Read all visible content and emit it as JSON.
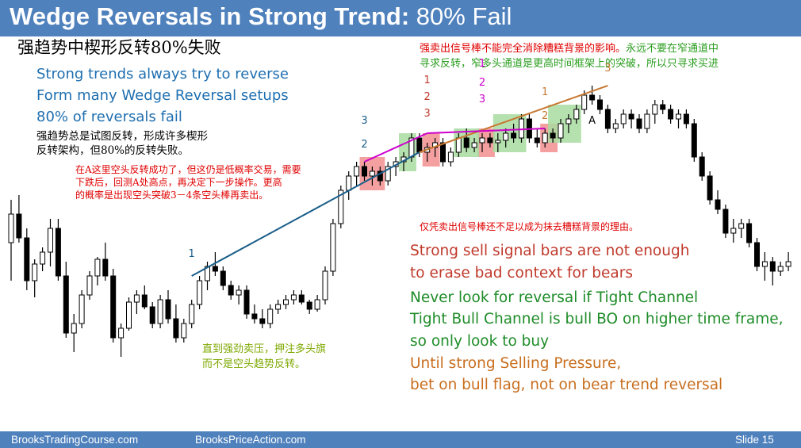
{
  "slide": {
    "title_bold": "Wedge Reversals in Strong Trend:",
    "title_plain": " 80% Fail",
    "title_zh": "强趋势中楔形反转80%失败",
    "blue_lines": [
      "Strong trends always try to reverse",
      "Form many Wedge Reversal setups",
      "80% of reversals fail"
    ],
    "note_black_zh": [
      "强趋势总是试图反转，形成许多楔形",
      "反转架构，但80%的反转失败。"
    ],
    "note_red_zh": [
      "在A这里空头反转成功了，但这仍是低概率交易，需要",
      "下跌后，回测A处高点，再决定下一步操作。更高",
      "的概率是出现空头突破3－4条空头棒再卖出。"
    ],
    "note_top_right_red_zh": "强卖出信号棒不能完全消除糟糕背景的影响。",
    "note_top_right_green_zh": "永远不要在窄通道中",
    "note_top_right_green_zh_2": "寻求反转，窄多头通道是更高时间框架上的突破，所以只寻求买进",
    "note_mid_red_zh": "仅凭卖出信号棒还不足以成为抹去糟糕背景的理由。",
    "note_olive_zh": [
      "直到强劲卖压，押注多头旗",
      "而不是空头趋势反转。"
    ],
    "en_lines": [
      {
        "text": "Strong sell signal bars are not enough",
        "color": "#c0392b"
      },
      {
        "text": "to erase bad context for bears",
        "color": "#c0392b"
      },
      {
        "text": "Never look for reversal if Tight Channel",
        "color": "#1e8c28"
      },
      {
        "text": "Tight Bull Channel is bull BO on higher time frame,",
        "color": "#1e8c28"
      },
      {
        "text": "so only look to buy",
        "color": "#1e8c28"
      },
      {
        "text": "Until strong Selling Pressure,",
        "color": "#c86e1e"
      },
      {
        "text": "bet on bull flag, not on bear trend reversal",
        "color": "#c86e1e"
      }
    ],
    "footer_left": "BrooksTradingCourse.com",
    "footer_mid": "BrooksPriceAction.com",
    "footer_right": "Slide  15"
  },
  "chart_data": {
    "type": "candlestick",
    "title": "",
    "xlabel": "",
    "ylabel": "",
    "grid": false,
    "colors": {
      "bull": "#ffffff",
      "bear": "#000000",
      "wick": "#000000",
      "wedge1": "#1a5e8a",
      "wedge2": "#c87832",
      "wedge3": "#cc00cc",
      "signal_red": "#f4a0a0",
      "green_box": "#a8dca0"
    },
    "bars": [
      [
        28,
        46,
        12,
        40
      ],
      [
        40,
        48,
        28,
        30
      ],
      [
        30,
        34,
        8,
        12
      ],
      [
        12,
        21,
        5,
        19
      ],
      [
        19,
        26,
        16,
        24
      ],
      [
        24,
        38,
        18,
        34
      ],
      [
        34,
        38,
        12,
        14
      ],
      [
        14,
        20,
        -12,
        -10
      ],
      [
        -10,
        -2,
        -18,
        -6
      ],
      [
        -6,
        8,
        -8,
        6
      ],
      [
        6,
        16,
        4,
        14
      ],
      [
        14,
        22,
        10,
        21
      ],
      [
        21,
        28,
        12,
        14
      ],
      [
        14,
        17,
        -14,
        -12
      ],
      [
        -12,
        -6,
        -20,
        -8
      ],
      [
        -8,
        5,
        -9,
        3
      ],
      [
        3,
        8,
        -2,
        6
      ],
      [
        6,
        10,
        0,
        1
      ],
      [
        1,
        3,
        -8,
        -6
      ],
      [
        -6,
        6,
        -8,
        4
      ],
      [
        4,
        8,
        -6,
        -4
      ],
      [
        -4,
        2,
        -14,
        -12
      ],
      [
        -12,
        -4,
        -14,
        -6
      ],
      [
        -6,
        4,
        -8,
        2
      ],
      [
        2,
        14,
        0,
        12
      ],
      [
        12,
        20,
        8,
        18
      ],
      [
        18,
        24,
        14,
        16
      ],
      [
        16,
        18,
        8,
        10
      ],
      [
        10,
        12,
        4,
        6
      ],
      [
        6,
        10,
        2,
        8
      ],
      [
        8,
        10,
        -4,
        -2
      ],
      [
        -2,
        2,
        -6,
        -4
      ],
      [
        -4,
        0,
        -8,
        -6
      ],
      [
        -6,
        2,
        -8,
        0
      ],
      [
        0,
        4,
        -2,
        2
      ],
      [
        2,
        6,
        0,
        4
      ],
      [
        4,
        8,
        2,
        6
      ],
      [
        6,
        8,
        2,
        3
      ],
      [
        3,
        4,
        -2,
        0
      ],
      [
        0,
        6,
        -1,
        4
      ],
      [
        4,
        18,
        2,
        16
      ],
      [
        16,
        38,
        14,
        36
      ],
      [
        36,
        52,
        34,
        50
      ],
      [
        50,
        58,
        46,
        56
      ],
      [
        56,
        62,
        52,
        60
      ],
      [
        60,
        62,
        54,
        56
      ],
      [
        56,
        60,
        52,
        58
      ],
      [
        58,
        60,
        52,
        54
      ],
      [
        54,
        62,
        52,
        60
      ],
      [
        60,
        64,
        56,
        62
      ],
      [
        62,
        66,
        58,
        64
      ],
      [
        64,
        74,
        62,
        72
      ],
      [
        72,
        74,
        64,
        66
      ],
      [
        66,
        70,
        62,
        68
      ],
      [
        68,
        72,
        64,
        70
      ],
      [
        70,
        72,
        60,
        62
      ],
      [
        62,
        68,
        60,
        66
      ],
      [
        66,
        74,
        64,
        72
      ],
      [
        72,
        76,
        66,
        68
      ],
      [
        68,
        72,
        66,
        70
      ],
      [
        70,
        74,
        66,
        72
      ],
      [
        72,
        74,
        68,
        70
      ],
      [
        70,
        74,
        66,
        71
      ],
      [
        71,
        76,
        68,
        74
      ],
      [
        74,
        78,
        70,
        72
      ],
      [
        72,
        82,
        70,
        80
      ],
      [
        80,
        82,
        70,
        72
      ],
      [
        72,
        76,
        68,
        70
      ],
      [
        70,
        76,
        68,
        74
      ],
      [
        74,
        76,
        70,
        72
      ],
      [
        72,
        80,
        70,
        78
      ],
      [
        78,
        82,
        74,
        80
      ],
      [
        80,
        86,
        78,
        84
      ],
      [
        84,
        92,
        82,
        90
      ],
      [
        90,
        94,
        86,
        88
      ],
      [
        88,
        90,
        82,
        84
      ],
      [
        84,
        86,
        74,
        76
      ],
      [
        76,
        80,
        74,
        78
      ],
      [
        78,
        84,
        76,
        82
      ],
      [
        82,
        84,
        76,
        80
      ],
      [
        80,
        82,
        74,
        76
      ],
      [
        76,
        84,
        74,
        82
      ],
      [
        82,
        88,
        78,
        86
      ],
      [
        86,
        88,
        82,
        84
      ],
      [
        84,
        86,
        78,
        80
      ],
      [
        80,
        84,
        76,
        82
      ],
      [
        82,
        84,
        76,
        78
      ],
      [
        78,
        80,
        62,
        64
      ],
      [
        64,
        66,
        54,
        56
      ],
      [
        56,
        58,
        44,
        46
      ],
      [
        46,
        50,
        40,
        42
      ],
      [
        42,
        44,
        30,
        32
      ],
      [
        32,
        38,
        28,
        34
      ],
      [
        34,
        38,
        30,
        36
      ],
      [
        36,
        38,
        26,
        28
      ],
      [
        28,
        30,
        16,
        18
      ],
      [
        18,
        24,
        12,
        20
      ],
      [
        20,
        22,
        10,
        16
      ],
      [
        16,
        20,
        14,
        18
      ],
      [
        18,
        24,
        16,
        20
      ]
    ],
    "wedge_labels": [
      {
        "label": "1",
        "color": "#1a5e8a"
      },
      {
        "label": "2",
        "color": "#1a5e8a"
      },
      {
        "label": "3",
        "color": "#1a5e8a"
      },
      {
        "label": "1",
        "color": "#c0392b"
      },
      {
        "label": "2",
        "color": "#c0392b"
      },
      {
        "label": "3",
        "color": "#c0392b"
      },
      {
        "label": "1",
        "color": "#cc00cc"
      },
      {
        "label": "2",
        "color": "#cc00cc"
      },
      {
        "label": "3",
        "color": "#cc00cc"
      },
      {
        "label": "1",
        "color": "#c87832"
      },
      {
        "label": "2",
        "color": "#c87832"
      },
      {
        "label": "3",
        "color": "#c87832"
      },
      {
        "label": "A",
        "color": "#000000"
      }
    ]
  }
}
